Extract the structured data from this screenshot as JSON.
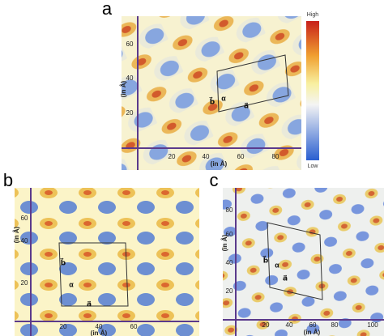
{
  "colorbar": {
    "high": "High",
    "low": "Low"
  },
  "panels": [
    {
      "label": "a",
      "x_label": "(in Å)",
      "y_label": "(in Å)",
      "x_ticks": [
        "20",
        "40",
        "60",
        "80"
      ],
      "y_ticks": [
        "60",
        "40",
        "20"
      ],
      "annotations": [
        "b⃗",
        "α",
        "a⃗"
      ]
    },
    {
      "label": "b",
      "x_label": "(in Å)",
      "y_label": "(in Å)",
      "x_ticks": [
        "20",
        "40",
        "60"
      ],
      "y_ticks": [
        "60",
        "40",
        "20"
      ],
      "annotations": [
        "b⃗",
        "α",
        "a⃗"
      ]
    },
    {
      "label": "c",
      "x_label": "(in Å)",
      "y_label": "(in Å)",
      "x_ticks": [
        "20",
        "40",
        "60",
        "80",
        "100"
      ],
      "y_ticks": [
        "80",
        "60",
        "40",
        "20"
      ],
      "annotations": [
        "b⃗",
        "α",
        "a⃗"
      ]
    }
  ]
}
